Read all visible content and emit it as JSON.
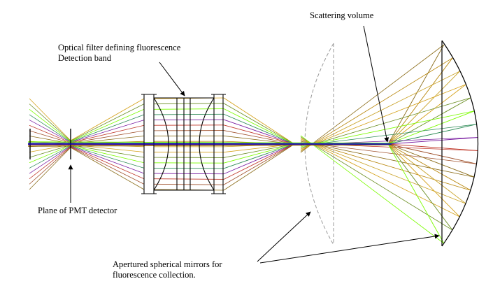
{
  "annotations": {
    "scattering_volume": "Scattering volume",
    "filter_line1": "Optical filter defining fluorescence",
    "filter_line2": "Detection band",
    "pmt_plane": "Plane of PMT detector",
    "mirrors_line1": "Apertured spherical mirrors for",
    "mirrors_line2": "fluorescence collection."
  },
  "colors": {
    "ray_palette": [
      "#8b6d1a",
      "#b8860b",
      "#c9a227",
      "#d4a017",
      "#6b8e23",
      "#7cfc00",
      "#2e8b57",
      "#7b1fa2",
      "#c0392b",
      "#a0522d"
    ],
    "optics": "#000000",
    "mirror_dashed": "#999999",
    "optical_axis": "#0000cc"
  }
}
